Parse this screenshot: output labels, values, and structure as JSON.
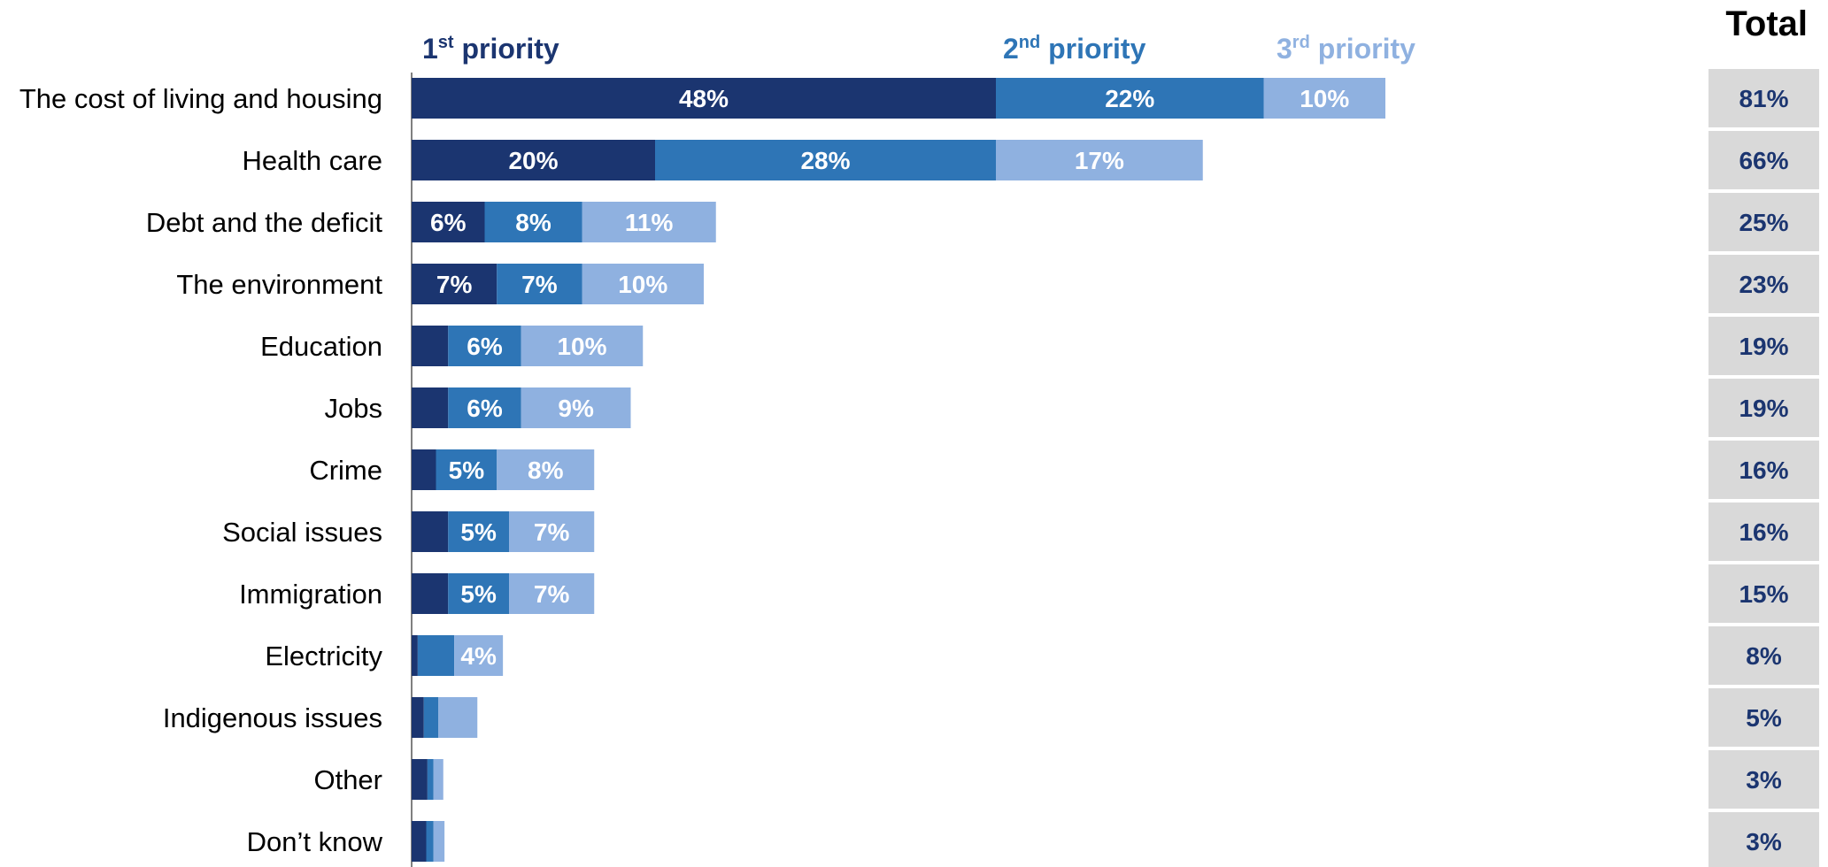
{
  "chart_data": {
    "type": "bar",
    "orientation": "horizontal",
    "stacked": true,
    "categories": [
      "The cost of living and housing",
      "Health care",
      "Debt and the deficit",
      "The environment",
      "Education",
      "Jobs",
      "Crime",
      "Social issues",
      "Immigration",
      "Electricity",
      "Indigenous issues",
      "Other",
      "Don’t know"
    ],
    "series": [
      {
        "legend": {
          "num": "1",
          "sup": "st",
          "text": " priority"
        },
        "color": "#1b3570",
        "values": [
          48,
          20,
          6,
          7,
          3,
          3,
          2,
          3,
          3,
          0.5,
          1,
          1.3,
          1.2
        ],
        "labels": [
          "48%",
          "20%",
          "6%",
          "7%",
          "",
          "",
          "",
          "",
          "",
          "",
          "",
          "",
          ""
        ]
      },
      {
        "legend": {
          "num": "2",
          "sup": "nd",
          "text": " priority"
        },
        "color": "#2e75b6",
        "values": [
          22,
          28,
          8,
          7,
          6,
          6,
          5,
          5,
          5,
          3,
          1.2,
          0.5,
          0.6
        ],
        "labels": [
          "22%",
          "28%",
          "8%",
          "7%",
          "6%",
          "6%",
          "5%",
          "5%",
          "5%",
          "",
          "",
          "",
          ""
        ]
      },
      {
        "legend": {
          "num": "3",
          "sup": "rd",
          "text": " priority"
        },
        "color": "#8fb1e0",
        "values": [
          10,
          17,
          11,
          10,
          10,
          9,
          8,
          7,
          7,
          4,
          3.2,
          0.8,
          0.9
        ],
        "labels": [
          "10%",
          "17%",
          "11%",
          "10%",
          "10%",
          "9%",
          "8%",
          "7%",
          "7%",
          "4%",
          "",
          "",
          ""
        ]
      }
    ],
    "totals": {
      "title": "Total",
      "values": [
        "81%",
        "66%",
        "25%",
        "23%",
        "19%",
        "19%",
        "16%",
        "16%",
        "15%",
        "8%",
        "5%",
        "3%",
        "3%"
      ],
      "background": "#d9d9d9",
      "text_color": "#1b3570"
    },
    "xlim": [
      0,
      100
    ],
    "grid": false,
    "legend_position": "top"
  }
}
